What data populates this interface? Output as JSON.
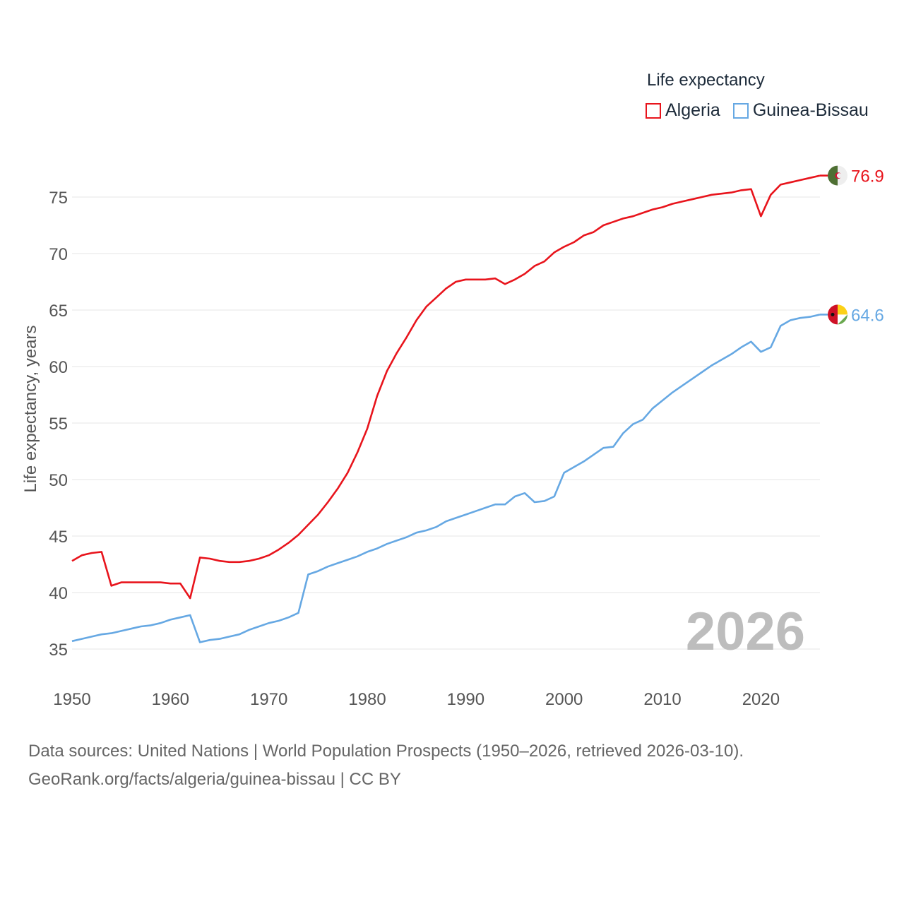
{
  "legend": {
    "title": "Life expectancy",
    "items": [
      {
        "label": "Algeria",
        "color": "#e8141c"
      },
      {
        "label": "Guinea-Bissau",
        "color": "#66a8e3"
      }
    ]
  },
  "footer": {
    "line1": "Data sources: United Nations | World Population Prospects (1950–2026, retrieved 2026-03-10).",
    "line2": "GeoRank.org/facts/algeria/guinea-bissau | CC BY"
  },
  "chart_data": {
    "type": "line",
    "title": "Life expectancy",
    "xlabel": "",
    "ylabel": "Life expectancy, years",
    "xlim": [
      1950,
      2026
    ],
    "ylim": [
      33,
      78
    ],
    "x_ticks": [
      1950,
      1960,
      1970,
      1980,
      1990,
      2000,
      2010,
      2020
    ],
    "y_ticks": [
      35,
      40,
      45,
      50,
      55,
      60,
      65,
      70,
      75
    ],
    "grid": true,
    "legend_position": "top-right",
    "year_watermark": "2026",
    "series": [
      {
        "name": "Algeria",
        "color": "#e8141c",
        "flag_icon": "algeria-flag-icon",
        "end_label": "76.9",
        "x": [
          1950,
          1951,
          1952,
          1953,
          1954,
          1955,
          1956,
          1957,
          1958,
          1959,
          1960,
          1961,
          1962,
          1963,
          1964,
          1965,
          1966,
          1967,
          1968,
          1969,
          1970,
          1971,
          1972,
          1973,
          1974,
          1975,
          1976,
          1977,
          1978,
          1979,
          1980,
          1981,
          1982,
          1983,
          1984,
          1985,
          1986,
          1987,
          1988,
          1989,
          1990,
          1991,
          1992,
          1993,
          1994,
          1995,
          1996,
          1997,
          1998,
          1999,
          2000,
          2001,
          2002,
          2003,
          2004,
          2005,
          2006,
          2007,
          2008,
          2009,
          2010,
          2011,
          2012,
          2013,
          2014,
          2015,
          2016,
          2017,
          2018,
          2019,
          2020,
          2021,
          2022,
          2023,
          2024,
          2025,
          2026
        ],
        "values": [
          42.8,
          43.3,
          43.5,
          43.6,
          40.6,
          40.9,
          40.9,
          40.9,
          40.9,
          40.9,
          40.8,
          40.8,
          39.5,
          43.1,
          43.0,
          42.8,
          42.7,
          42.7,
          42.8,
          43.0,
          43.3,
          43.8,
          44.4,
          45.1,
          46.0,
          46.9,
          48.0,
          49.2,
          50.6,
          52.4,
          54.5,
          57.4,
          59.6,
          61.2,
          62.6,
          64.1,
          65.3,
          66.1,
          66.9,
          67.5,
          67.7,
          67.7,
          67.7,
          67.8,
          67.3,
          67.7,
          68.2,
          68.9,
          69.3,
          70.1,
          70.6,
          71.0,
          71.6,
          71.9,
          72.5,
          72.8,
          73.1,
          73.3,
          73.6,
          73.9,
          74.1,
          74.4,
          74.6,
          74.8,
          75.0,
          75.2,
          75.3,
          75.4,
          75.6,
          75.7,
          73.3,
          75.2,
          76.1,
          76.3,
          76.5,
          76.7,
          76.9
        ]
      },
      {
        "name": "Guinea-Bissau",
        "color": "#66a8e3",
        "flag_icon": "guinea-bissau-flag-icon",
        "end_label": "64.6",
        "x": [
          1950,
          1951,
          1952,
          1953,
          1954,
          1955,
          1956,
          1957,
          1958,
          1959,
          1960,
          1961,
          1962,
          1963,
          1964,
          1965,
          1966,
          1967,
          1968,
          1969,
          1970,
          1971,
          1972,
          1973,
          1974,
          1975,
          1976,
          1977,
          1978,
          1979,
          1980,
          1981,
          1982,
          1983,
          1984,
          1985,
          1986,
          1987,
          1988,
          1989,
          1990,
          1991,
          1992,
          1993,
          1994,
          1995,
          1996,
          1997,
          1998,
          1999,
          2000,
          2001,
          2002,
          2003,
          2004,
          2005,
          2006,
          2007,
          2008,
          2009,
          2010,
          2011,
          2012,
          2013,
          2014,
          2015,
          2016,
          2017,
          2018,
          2019,
          2020,
          2021,
          2022,
          2023,
          2024,
          2025,
          2026
        ],
        "values": [
          35.7,
          35.9,
          36.1,
          36.3,
          36.4,
          36.6,
          36.8,
          37.0,
          37.1,
          37.3,
          37.6,
          37.8,
          38.0,
          35.6,
          35.8,
          35.9,
          36.1,
          36.3,
          36.7,
          37.0,
          37.3,
          37.5,
          37.8,
          38.2,
          41.6,
          41.9,
          42.3,
          42.6,
          42.9,
          43.2,
          43.6,
          43.9,
          44.3,
          44.6,
          44.9,
          45.3,
          45.5,
          45.8,
          46.3,
          46.6,
          46.9,
          47.2,
          47.5,
          47.8,
          47.8,
          48.5,
          48.8,
          48.0,
          48.1,
          48.5,
          50.6,
          51.1,
          51.6,
          52.2,
          52.8,
          52.9,
          54.1,
          54.9,
          55.3,
          56.3,
          57.0,
          57.7,
          58.3,
          58.9,
          59.5,
          60.1,
          60.6,
          61.1,
          61.7,
          62.2,
          61.3,
          61.7,
          63.6,
          64.1,
          64.3,
          64.4,
          64.6
        ]
      }
    ]
  }
}
